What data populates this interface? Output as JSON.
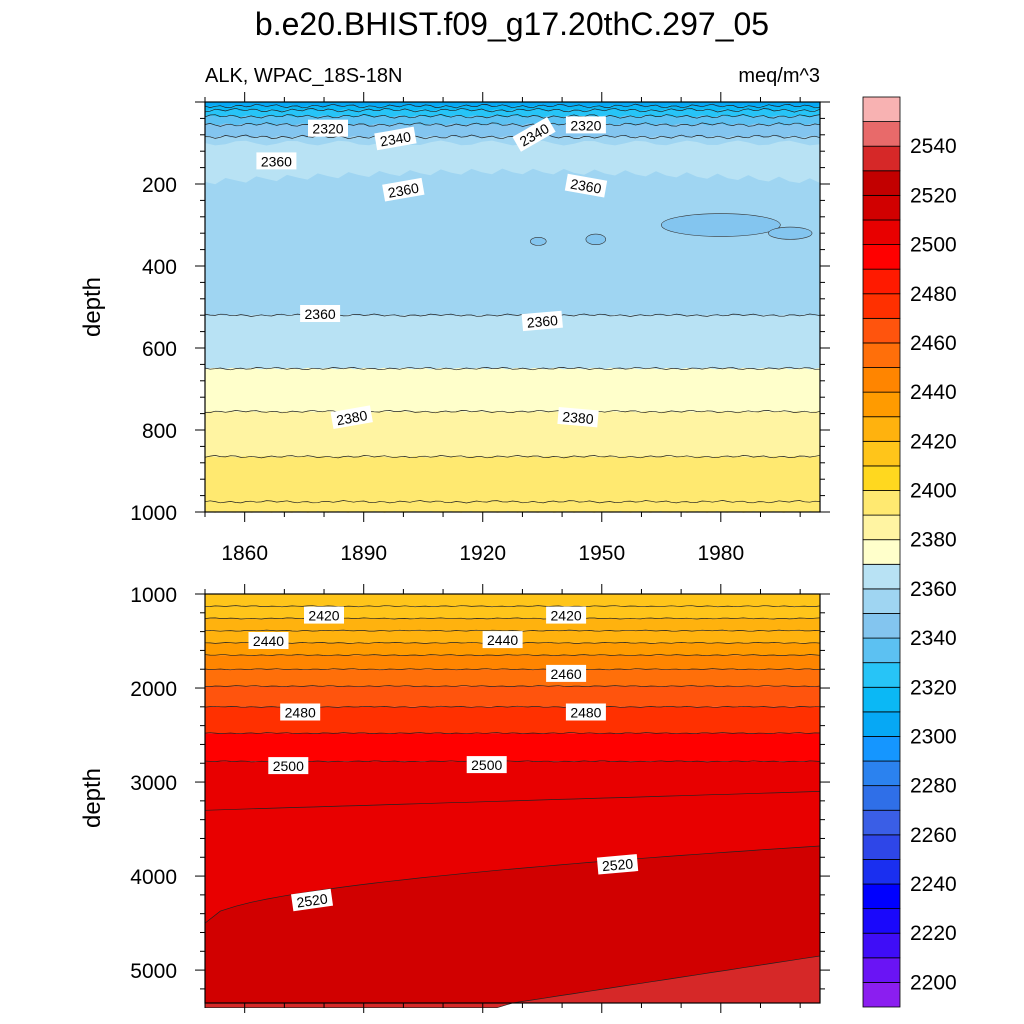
{
  "chart_data": {
    "title": "b.e20.BHIST.f09_g17.20thC.297_05",
    "left_subtitle": "ALK, WPAC_18S-18N",
    "right_subtitle": "meq/m^3",
    "type": "contour",
    "colorbar": {
      "levels": [
        2200,
        2210,
        2220,
        2230,
        2240,
        2250,
        2260,
        2270,
        2280,
        2290,
        2300,
        2310,
        2320,
        2330,
        2340,
        2350,
        2360,
        2370,
        2380,
        2390,
        2400,
        2410,
        2420,
        2430,
        2440,
        2450,
        2460,
        2470,
        2480,
        2490,
        2500,
        2510,
        2520,
        2530,
        2540,
        2550
      ],
      "labels": [
        "2200",
        "2220",
        "2240",
        "2260",
        "2280",
        "2300",
        "2320",
        "2340",
        "2360",
        "2380",
        "2400",
        "2420",
        "2440",
        "2460",
        "2480",
        "2500",
        "2520",
        "2540"
      ],
      "colors": [
        "#8b1ef0",
        "#6a14f5",
        "#3f0df7",
        "#1a08fb",
        "#0000ff",
        "#1a2ff0",
        "#2e46e8",
        "#3a5ee6",
        "#2f6fe8",
        "#2b82ef",
        "#1596ff",
        "#06a8f5",
        "#0bb8f5",
        "#27c4f7",
        "#5cc1f2",
        "#83c5ef",
        "#9fd5f2",
        "#b8e2f4",
        "#ffffcb",
        "#fff4a2",
        "#ffe970",
        "#ffd81f",
        "#ffc51a",
        "#ffb20e",
        "#ff9b00",
        "#ff8500",
        "#ff6f0a",
        "#ff540d",
        "#ff3000",
        "#ff1a00",
        "#ff0000",
        "#e80000",
        "#d10000",
        "#c20000",
        "#d62828",
        "#e86a6a",
        "#f8b2b2"
      ]
    },
    "panels": [
      {
        "name": "upper",
        "xlabel": "",
        "ylabel": "depth",
        "xlim": [
          1850,
          2005
        ],
        "ylim": [
          1000,
          0
        ],
        "xticks": [
          "1860",
          "1890",
          "1920",
          "1950",
          "1980"
        ],
        "yticks": [
          "200",
          "400",
          "600",
          "800",
          "1000"
        ],
        "contour_labels": [
          "2320",
          "2340",
          "2340",
          "2320",
          "2360",
          "2360",
          "2360",
          "2360",
          "2360",
          "2380",
          "2380"
        ]
      },
      {
        "name": "lower",
        "xlabel": "",
        "ylabel": "depth",
        "xlim": [
          1850,
          2005
        ],
        "ylim": [
          5350,
          1000
        ],
        "xticks": [],
        "yticks": [
          "1000",
          "2000",
          "3000",
          "4000",
          "5000"
        ],
        "contour_labels": [
          "2420",
          "2420",
          "2440",
          "2440",
          "2460",
          "2480",
          "2480",
          "2500",
          "2500",
          "2520",
          "2520"
        ]
      }
    ]
  }
}
